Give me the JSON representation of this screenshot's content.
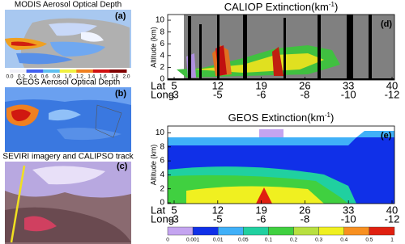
{
  "panels": {
    "a": {
      "title": "MODIS Aerosol Optical Depth",
      "label": "(a)",
      "colorbar": {
        "ticks": [
          "0.0",
          "0.2",
          "0.4",
          "0.6",
          "0.8",
          "1.0",
          "1.2",
          "1.4",
          "1.6",
          "1.8",
          "2.0"
        ]
      }
    },
    "b": {
      "title": "GEOS Aerosol Optical Depth",
      "label": "(b)"
    },
    "c": {
      "title": "SEVIRI imagery and CALIPSO track",
      "label": "(c)"
    },
    "d": {
      "title_parts": [
        "CALIOP Extinction(km",
        "-1",
        ")"
      ],
      "label": "(d)",
      "y_label": "Altitude (km)",
      "yticks": [
        0,
        2,
        4,
        6,
        8,
        10
      ],
      "lat_label": "Lat",
      "lat_ticks": [
        5,
        12,
        19,
        26,
        33,
        40
      ],
      "long_label": "Long",
      "long_ticks": [
        -3,
        -5,
        -6,
        -8,
        -10,
        -12
      ]
    },
    "e": {
      "title_parts": [
        "GEOS Extinction(km",
        "-1",
        ")"
      ],
      "label": "(e)",
      "y_label": "Altitude (km)",
      "yticks": [
        0,
        2,
        4,
        6,
        8,
        10
      ],
      "lat_label": "Lat",
      "lat_ticks": [
        5,
        12,
        19,
        26,
        33,
        40
      ],
      "long_label": "Long",
      "long_ticks": [
        -3,
        -5,
        -6,
        -8,
        -10,
        -12
      ],
      "colorbar": {
        "ticks": [
          0,
          0.001,
          0.01,
          0.05,
          0.1,
          0.2,
          0.3,
          0.4,
          0.5,
          1
        ],
        "colors": [
          "#c4a4f0",
          "#1030e8",
          "#40b0f8",
          "#20d0a0",
          "#40d040",
          "#b8e040",
          "#f0f020",
          "#f89020",
          "#e02010"
        ]
      }
    }
  }
}
